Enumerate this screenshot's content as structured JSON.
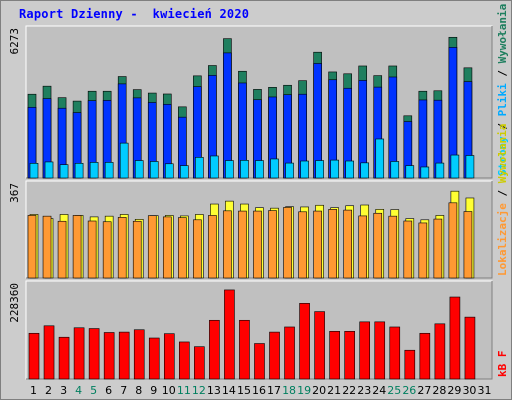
{
  "title": "Raport Dzienny -  kwiecień 2020",
  "colors": {
    "wizyty": "#0033ff",
    "wizyty_top": "#1f7f5f",
    "strony": "#0033ff",
    "pliki": "#00ccff",
    "lokalizacje": "#ff9933",
    "wywolania": "#ffff33",
    "kbf": "#ff0000",
    "weekend_label": "#007f5f",
    "axis_label": "#000000"
  },
  "chart_data": [
    {
      "type": "bar",
      "y_axis_label": "6273",
      "ylim": [
        0,
        6273
      ],
      "x": [
        1,
        2,
        3,
        4,
        5,
        6,
        7,
        8,
        9,
        10,
        11,
        12,
        13,
        14,
        15,
        16,
        17,
        18,
        19,
        20,
        21,
        22,
        23,
        24,
        25,
        26,
        27,
        28,
        29,
        30,
        31
      ],
      "series": [
        {
          "name": "Wywołania",
          "values": [
            3650,
            4000,
            3500,
            3350,
            3780,
            3780,
            4420,
            3850,
            3700,
            3660,
            3100,
            4450,
            4900,
            6070,
            4650,
            3860,
            3950,
            4040,
            4240,
            5480,
            4620,
            4540,
            4880,
            4460,
            4880,
            2710,
            3780,
            3800,
            6130,
            4800,
            null
          ]
        },
        {
          "name": "Strony",
          "values": [
            3080,
            3460,
            3040,
            2850,
            3370,
            3380,
            4100,
            3490,
            3290,
            3210,
            2650,
            3980,
            4470,
            5450,
            4140,
            3410,
            3530,
            3630,
            3650,
            4990,
            4280,
            3910,
            4250,
            3960,
            4400,
            2460,
            3400,
            3390,
            5690,
            4200,
            null
          ]
        },
        {
          "name": "Pliki",
          "values": [
            640,
            700,
            580,
            640,
            680,
            680,
            1520,
            760,
            720,
            620,
            540,
            900,
            960,
            760,
            770,
            760,
            830,
            650,
            740,
            760,
            780,
            740,
            660,
            1700,
            720,
            540,
            480,
            650,
            1000,
            980,
            null
          ]
        }
      ]
    },
    {
      "type": "bar",
      "y_axis_label": "367",
      "ylim": [
        0,
        367
      ],
      "series": [
        {
          "name": "Wywołania",
          "values": [
            262,
            245,
            262,
            258,
            252,
            255,
            262,
            242,
            257,
            258,
            256,
            262,
            305,
            317,
            305,
            290,
            288,
            294,
            293,
            300,
            290,
            298,
            301,
            283,
            282,
            245,
            240,
            258,
            358,
            330,
            null
          ]
        },
        {
          "name": "Lokalizacje",
          "values": [
            258,
            255,
            234,
            258,
            235,
            232,
            250,
            234,
            257,
            252,
            249,
            240,
            258,
            277,
            276,
            276,
            278,
            291,
            273,
            276,
            283,
            280,
            256,
            267,
            255,
            235,
            227,
            243,
            310,
            274,
            null
          ]
        }
      ]
    },
    {
      "type": "bar",
      "y_axis_label": "228360",
      "ylim": [
        0,
        228360
      ],
      "series": [
        {
          "name": "kB F",
          "values": [
            116000,
            135000,
            106000,
            130000,
            128000,
            118000,
            119000,
            125000,
            104000,
            115000,
            94000,
            82000,
            149000,
            226000,
            149000,
            90000,
            119000,
            132000,
            192000,
            171000,
            121000,
            121000,
            145000,
            145000,
            132000,
            73000,
            116000,
            140000,
            208000,
            157000,
            null
          ]
        }
      ]
    }
  ],
  "x_labels": [
    {
      "text": "1",
      "weekend": false
    },
    {
      "text": "2",
      "weekend": false
    },
    {
      "text": "3",
      "weekend": false
    },
    {
      "text": "4",
      "weekend": true
    },
    {
      "text": "5",
      "weekend": true
    },
    {
      "text": "6",
      "weekend": false
    },
    {
      "text": "7",
      "weekend": false
    },
    {
      "text": "8",
      "weekend": false
    },
    {
      "text": "9",
      "weekend": false
    },
    {
      "text": "10",
      "weekend": false
    },
    {
      "text": "11",
      "weekend": true
    },
    {
      "text": "12",
      "weekend": true
    },
    {
      "text": "13",
      "weekend": false
    },
    {
      "text": "14",
      "weekend": false
    },
    {
      "text": "15",
      "weekend": false
    },
    {
      "text": "16",
      "weekend": false
    },
    {
      "text": "17",
      "weekend": false
    },
    {
      "text": "18",
      "weekend": true
    },
    {
      "text": "19",
      "weekend": true
    },
    {
      "text": "20",
      "weekend": false
    },
    {
      "text": "21",
      "weekend": false
    },
    {
      "text": "22",
      "weekend": false
    },
    {
      "text": "23",
      "weekend": false
    },
    {
      "text": "24",
      "weekend": false
    },
    {
      "text": "25",
      "weekend": true
    },
    {
      "text": "26",
      "weekend": true
    },
    {
      "text": "27",
      "weekend": false
    },
    {
      "text": "28",
      "weekend": false
    },
    {
      "text": "29",
      "weekend": false
    },
    {
      "text": "30",
      "weekend": false
    },
    {
      "text": "31",
      "weekend": false
    }
  ],
  "legend": {
    "top": [
      {
        "text": "Wywołania",
        "color": "#1f7f5f"
      },
      {
        "text": " / ",
        "color": "#000000"
      },
      {
        "text": "Pliki",
        "color": "#00aaff"
      },
      {
        "text": " / ",
        "color": "#000000"
      },
      {
        "text": "Strony",
        "color": "#00ccff"
      }
    ],
    "middle": [
      {
        "text": "Wywołania",
        "color": "#cccc00"
      },
      {
        "text": " / ",
        "color": "#000000"
      },
      {
        "text": "Lokalizacje",
        "color": "#ff9933"
      }
    ],
    "bottom": [
      {
        "text": "kB F",
        "color": "#ff0000"
      }
    ]
  }
}
